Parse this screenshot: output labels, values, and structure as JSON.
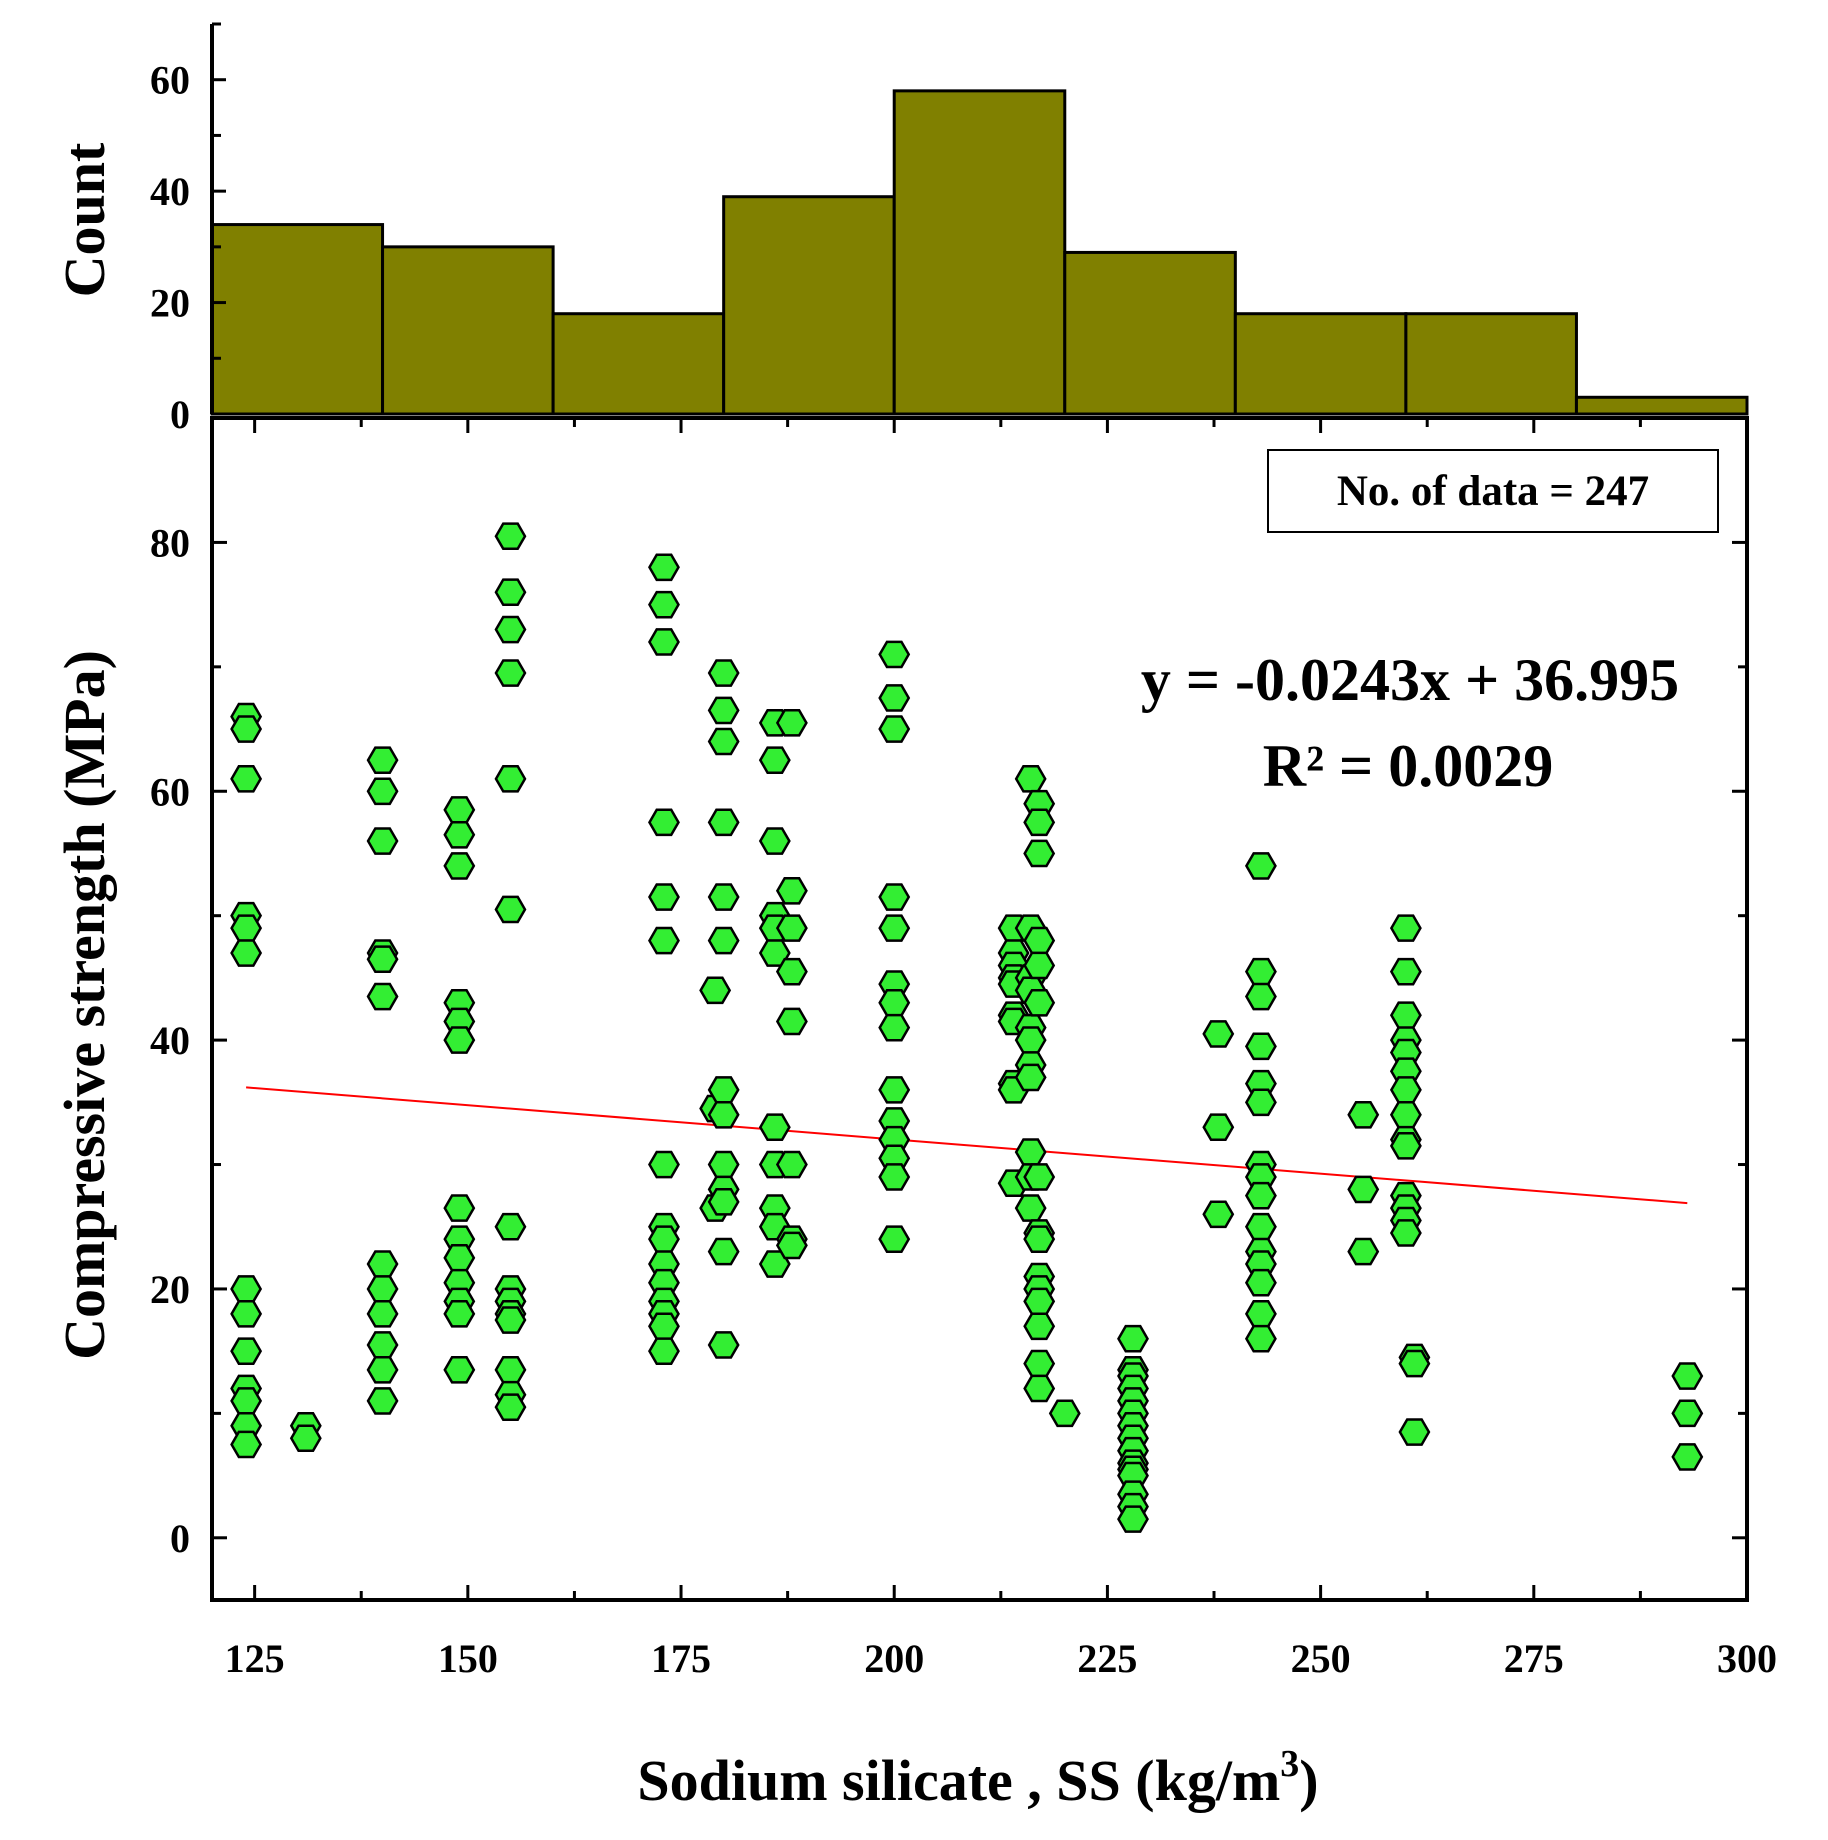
{
  "chart_data": [
    {
      "type": "histogram",
      "ylabel": "Count",
      "xlim": [
        120,
        300
      ],
      "ylim": [
        0,
        70
      ],
      "ytick_labels": [
        "0",
        "20",
        "40",
        "60"
      ],
      "bin_width": 20,
      "bins": [
        {
          "start": 120,
          "end": 140,
          "count": 34
        },
        {
          "start": 140,
          "end": 160,
          "count": 30
        },
        {
          "start": 160,
          "end": 180,
          "count": 18
        },
        {
          "start": 180,
          "end": 200,
          "count": 39
        },
        {
          "start": 200,
          "end": 220,
          "count": 58
        },
        {
          "start": 220,
          "end": 240,
          "count": 29
        },
        {
          "start": 240,
          "end": 260,
          "count": 18
        },
        {
          "start": 260,
          "end": 280,
          "count": 18
        },
        {
          "start": 280,
          "end": 300,
          "count": 3
        }
      ],
      "color": "#808000"
    },
    {
      "type": "scatter",
      "xlabel": "Sodium silicate , SS (kg/m",
      "xlabel_sup": "3",
      "xlabel_end": ")",
      "ylabel": "Compressive strength (MPa)",
      "xlim": [
        120,
        300
      ],
      "ylim": [
        -5,
        90
      ],
      "xtick_labels": [
        "125",
        "150",
        "175",
        "200",
        "225",
        "250",
        "275",
        "300"
      ],
      "ytick_labels": [
        "0",
        "20",
        "40",
        "60",
        "80"
      ],
      "marker": "hexagon",
      "marker_color": "#33ee33",
      "annotation": "No. of data = 247",
      "equation": "y = -0.0243x + 36.995",
      "r_squared": "R² = 0.0029",
      "trendline": {
        "slope": -0.0243,
        "intercept": 36.995,
        "x_range": [
          124,
          293
        ],
        "color": "#ff0000"
      },
      "points": [
        [
          124,
          66
        ],
        [
          124,
          65
        ],
        [
          124,
          61
        ],
        [
          124,
          50
        ],
        [
          124,
          49
        ],
        [
          124,
          47
        ],
        [
          124,
          20
        ],
        [
          124,
          18
        ],
        [
          124,
          15
        ],
        [
          124,
          12
        ],
        [
          124,
          11
        ],
        [
          124,
          9
        ],
        [
          124,
          7.5
        ],
        [
          131,
          9
        ],
        [
          131,
          8
        ],
        [
          140,
          62.5
        ],
        [
          140,
          60
        ],
        [
          140,
          56
        ],
        [
          140,
          47
        ],
        [
          140,
          46.5
        ],
        [
          140,
          43.5
        ],
        [
          140,
          22
        ],
        [
          140,
          20
        ],
        [
          140,
          18
        ],
        [
          140,
          15.5
        ],
        [
          140,
          13.5
        ],
        [
          140,
          11
        ],
        [
          149,
          58.5
        ],
        [
          149,
          56.5
        ],
        [
          149,
          54
        ],
        [
          149,
          43
        ],
        [
          149,
          41.5
        ],
        [
          149,
          40
        ],
        [
          149,
          26.5
        ],
        [
          149,
          24
        ],
        [
          149,
          22.5
        ],
        [
          149,
          20.5
        ],
        [
          149,
          19
        ],
        [
          149,
          18
        ],
        [
          149,
          13.5
        ],
        [
          155,
          80.5
        ],
        [
          155,
          76
        ],
        [
          155,
          73
        ],
        [
          155,
          69.5
        ],
        [
          155,
          61
        ],
        [
          155,
          50.5
        ],
        [
          155,
          25
        ],
        [
          155,
          20
        ],
        [
          155,
          19
        ],
        [
          155,
          18
        ],
        [
          155,
          17.5
        ],
        [
          155,
          13.5
        ],
        [
          155,
          11.5
        ],
        [
          155,
          10.5
        ],
        [
          173,
          78
        ],
        [
          173,
          75
        ],
        [
          173,
          72
        ],
        [
          173,
          57.5
        ],
        [
          173,
          51.5
        ],
        [
          173,
          48
        ],
        [
          173,
          30
        ],
        [
          173,
          25
        ],
        [
          173,
          24
        ],
        [
          173,
          22
        ],
        [
          173,
          20.5
        ],
        [
          173,
          19
        ],
        [
          173,
          18
        ],
        [
          173,
          17
        ],
        [
          173,
          15
        ],
        [
          179,
          44
        ],
        [
          179,
          34.5
        ],
        [
          179,
          26.5
        ],
        [
          180,
          69.5
        ],
        [
          180,
          66.5
        ],
        [
          180,
          64
        ],
        [
          180,
          57.5
        ],
        [
          180,
          51.5
        ],
        [
          180,
          48
        ],
        [
          180,
          36
        ],
        [
          180,
          34
        ],
        [
          180,
          30
        ],
        [
          180,
          28
        ],
        [
          180,
          27
        ],
        [
          180,
          23
        ],
        [
          180,
          15.5
        ],
        [
          186,
          65.5
        ],
        [
          186,
          62.5
        ],
        [
          186,
          56
        ],
        [
          186,
          50
        ],
        [
          186,
          49
        ],
        [
          186,
          47
        ],
        [
          186,
          33
        ],
        [
          186,
          30
        ],
        [
          186,
          26.5
        ],
        [
          186,
          25
        ],
        [
          186,
          22
        ],
        [
          188,
          65.5
        ],
        [
          188,
          52
        ],
        [
          188,
          49
        ],
        [
          188,
          45.5
        ],
        [
          188,
          41.5
        ],
        [
          188,
          30
        ],
        [
          188,
          24
        ],
        [
          188,
          23.5
        ],
        [
          200,
          71
        ],
        [
          200,
          67.5
        ],
        [
          200,
          65
        ],
        [
          200,
          51.5
        ],
        [
          200,
          49
        ],
        [
          200,
          44.5
        ],
        [
          200,
          43
        ],
        [
          200,
          41
        ],
        [
          200,
          36
        ],
        [
          200,
          33.5
        ],
        [
          200,
          32
        ],
        [
          200,
          30.5
        ],
        [
          200,
          29
        ],
        [
          200,
          24
        ],
        [
          214,
          49
        ],
        [
          214,
          47
        ],
        [
          214,
          46
        ],
        [
          214,
          45
        ],
        [
          214,
          44.5
        ],
        [
          214,
          42
        ],
        [
          214,
          41.5
        ],
        [
          214,
          36.5
        ],
        [
          214,
          36
        ],
        [
          214,
          28.5
        ],
        [
          216,
          61
        ],
        [
          216,
          49
        ],
        [
          216,
          45
        ],
        [
          216,
          44
        ],
        [
          216,
          41
        ],
        [
          216,
          40
        ],
        [
          216,
          38
        ],
        [
          216,
          37
        ],
        [
          216,
          31
        ],
        [
          216,
          29
        ],
        [
          216,
          26.5
        ],
        [
          217,
          59
        ],
        [
          217,
          57.5
        ],
        [
          217,
          55
        ],
        [
          217,
          48
        ],
        [
          217,
          46
        ],
        [
          217,
          43
        ],
        [
          217,
          29
        ],
        [
          217,
          24.5
        ],
        [
          217,
          24
        ],
        [
          217,
          21
        ],
        [
          217,
          20
        ],
        [
          217,
          19
        ],
        [
          217,
          17
        ],
        [
          217,
          14
        ],
        [
          217,
          12
        ],
        [
          220,
          10
        ],
        [
          228,
          16
        ],
        [
          228,
          13.5
        ],
        [
          228,
          13
        ],
        [
          228,
          12
        ],
        [
          228,
          11
        ],
        [
          228,
          10
        ],
        [
          228,
          9
        ],
        [
          228,
          8
        ],
        [
          228,
          7
        ],
        [
          228,
          6
        ],
        [
          228,
          5.5
        ],
        [
          228,
          5
        ],
        [
          228,
          3.5
        ],
        [
          228,
          2.5
        ],
        [
          228,
          1.5
        ],
        [
          238,
          40.5
        ],
        [
          238,
          33
        ],
        [
          238,
          26
        ],
        [
          243,
          54
        ],
        [
          243,
          45.5
        ],
        [
          243,
          43.5
        ],
        [
          243,
          39.5
        ],
        [
          243,
          36.5
        ],
        [
          243,
          35
        ],
        [
          243,
          30
        ],
        [
          243,
          29
        ],
        [
          243,
          27.5
        ],
        [
          243,
          25
        ],
        [
          243,
          23
        ],
        [
          243,
          22
        ],
        [
          243,
          20.5
        ],
        [
          243,
          18
        ],
        [
          243,
          16
        ],
        [
          255,
          34
        ],
        [
          255,
          28
        ],
        [
          255,
          23
        ],
        [
          260,
          49
        ],
        [
          260,
          45.5
        ],
        [
          260,
          42
        ],
        [
          260,
          40
        ],
        [
          260,
          39
        ],
        [
          260,
          37.5
        ],
        [
          260,
          36
        ],
        [
          260,
          34
        ],
        [
          260,
          32
        ],
        [
          260,
          31.5
        ],
        [
          260,
          27.5
        ],
        [
          260,
          26.5
        ],
        [
          260,
          25.5
        ],
        [
          260,
          24.5
        ],
        [
          261,
          14.5
        ],
        [
          261,
          14
        ],
        [
          261,
          8.5
        ],
        [
          293,
          13
        ],
        [
          293,
          10
        ],
        [
          293,
          6.5
        ]
      ]
    }
  ]
}
